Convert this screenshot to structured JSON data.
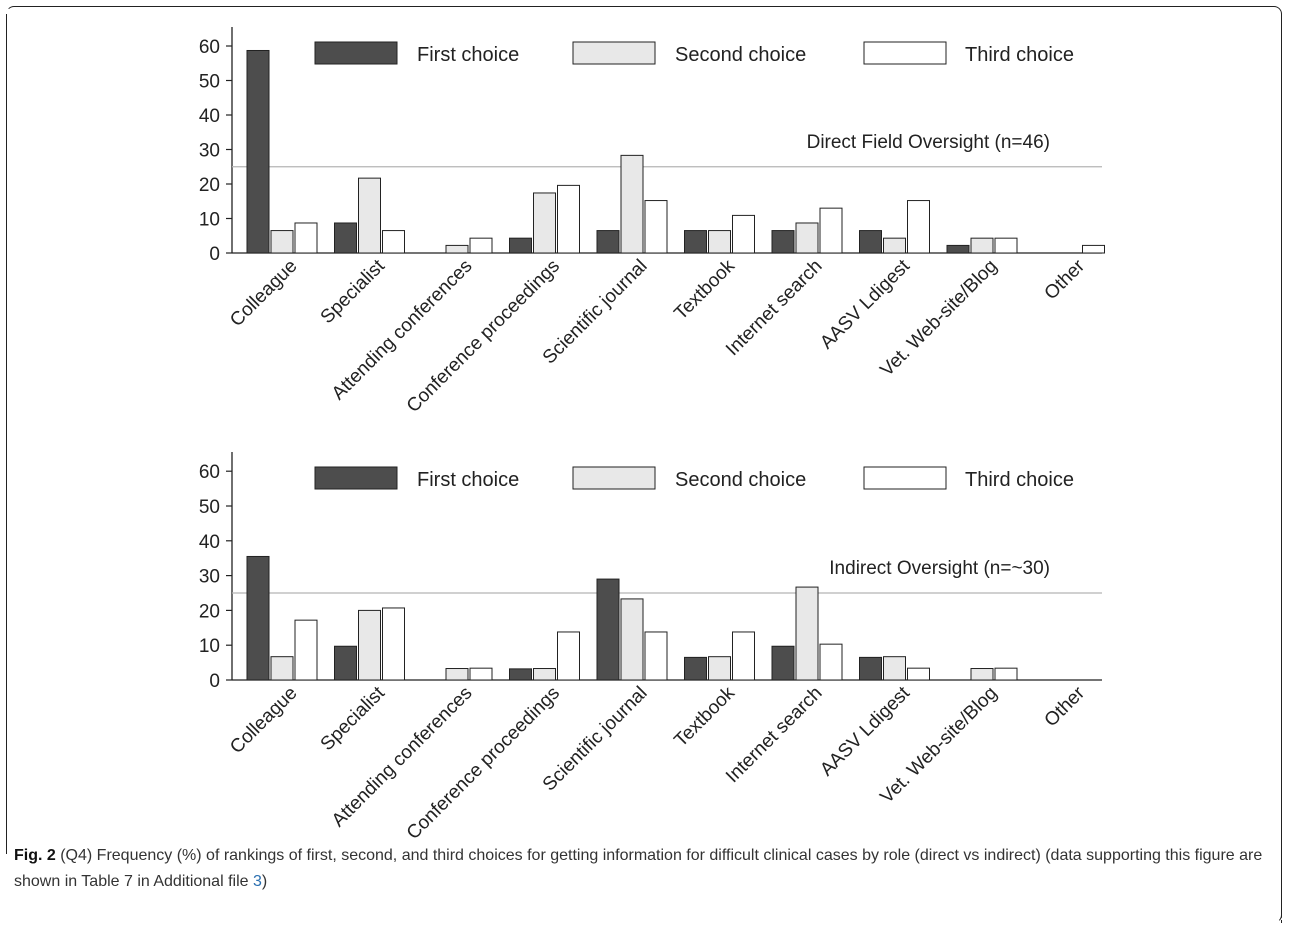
{
  "chart_data": [
    {
      "type": "bar",
      "title": "Direct Field Oversight (n=46)",
      "categories": [
        "Colleague",
        "Specialist",
        "Attending conferences",
        "Conference proceedings",
        "Scientific journal",
        "Textbook",
        "Internet search",
        "AASV Ldigest",
        "Vet. Web-site/Blog",
        "Other"
      ],
      "series": [
        {
          "name": "First choice",
          "color": "#4d4d4d",
          "values": [
            58.7,
            8.7,
            0,
            4.3,
            6.5,
            6.5,
            6.5,
            6.5,
            2.2,
            0
          ]
        },
        {
          "name": "Second choice",
          "color": "#e8e8e8",
          "values": [
            6.5,
            21.7,
            2.2,
            17.4,
            28.3,
            6.5,
            8.7,
            4.3,
            4.3,
            0
          ]
        },
        {
          "name": "Third choice",
          "color": "#ffffff",
          "values": [
            8.7,
            6.5,
            4.3,
            19.6,
            15.2,
            10.9,
            13.0,
            15.2,
            4.3,
            2.2
          ]
        }
      ],
      "reference_line": 25,
      "ylim": [
        0,
        65
      ],
      "yticks": [
        0,
        10,
        20,
        30,
        40,
        50,
        60
      ],
      "xlabel": "",
      "ylabel": "",
      "legend_position": "top"
    },
    {
      "type": "bar",
      "title": "Indirect Oversight (n=~30)",
      "categories": [
        "Colleague",
        "Specialist",
        "Attending conferences",
        "Conference proceedings",
        "Scientific journal",
        "Textbook",
        "Internet search",
        "AASV Ldigest",
        "Vet. Web-site/Blog",
        "Other"
      ],
      "series": [
        {
          "name": "First choice",
          "color": "#4d4d4d",
          "values": [
            35.5,
            9.7,
            0,
            3.2,
            29.0,
            6.5,
            9.7,
            6.5,
            0,
            0
          ]
        },
        {
          "name": "Second choice",
          "color": "#e8e8e8",
          "values": [
            6.7,
            20.0,
            3.3,
            3.3,
            23.3,
            6.7,
            26.7,
            6.7,
            3.3,
            0
          ]
        },
        {
          "name": "Third choice",
          "color": "#ffffff",
          "values": [
            17.2,
            20.7,
            3.4,
            13.8,
            13.8,
            13.8,
            10.3,
            3.4,
            3.4,
            0
          ]
        }
      ],
      "reference_line": 25,
      "ylim": [
        0,
        65
      ],
      "yticks": [
        0,
        10,
        20,
        30,
        40,
        50,
        60
      ],
      "xlabel": "",
      "ylabel": "",
      "legend_position": "top"
    }
  ],
  "caption": {
    "label": "Fig. 2",
    "text_before_link": " (Q4) Frequency (%) of rankings of first, second, and third choices for getting information for difficult clinical cases by role (direct vs indirect) (data supporting this figure are shown in Table 7 in Additional file ",
    "link": "3",
    "text_after_link": ")"
  }
}
